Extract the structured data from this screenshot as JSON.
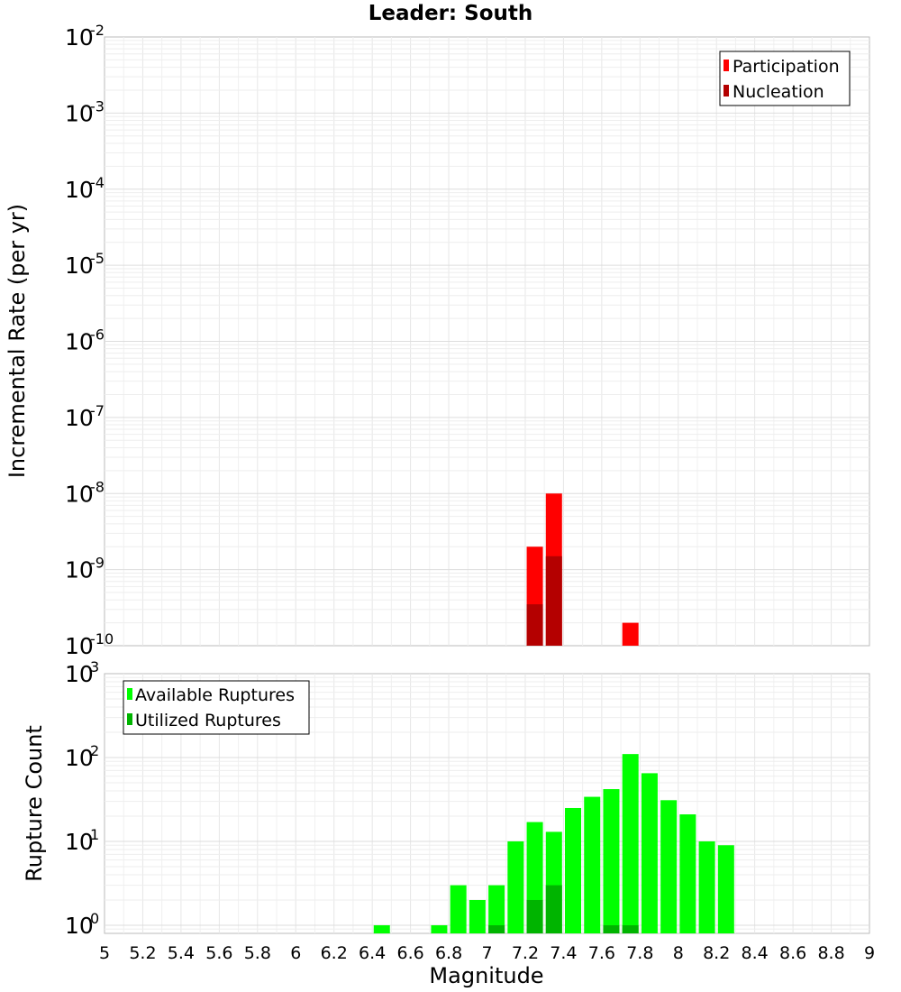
{
  "chart_data": [
    {
      "type": "bar",
      "title": "Leader: South",
      "xlabel": "",
      "ylabel": "Incremental Rate (per yr)",
      "xlim": [
        5,
        9
      ],
      "ylim": [
        1e-10,
        0.01
      ],
      "yscale": "log",
      "grid": true,
      "legend_position": "top-right",
      "ytick_labels": [
        {
          "base": "10",
          "exp": "-2"
        },
        {
          "base": "10",
          "exp": "-3"
        },
        {
          "base": "10",
          "exp": "-4"
        },
        {
          "base": "10",
          "exp": "-5"
        },
        {
          "base": "10",
          "exp": "-6"
        },
        {
          "base": "10",
          "exp": "-7"
        },
        {
          "base": "10",
          "exp": "-8"
        },
        {
          "base": "10",
          "exp": "-9"
        },
        {
          "base": "10",
          "exp": "-10"
        }
      ],
      "series": [
        {
          "name": "Participation",
          "color": "#ff0000",
          "x": [
            7.25,
            7.35,
            7.75
          ],
          "values": [
            2e-09,
            1e-08,
            2e-10
          ]
        },
        {
          "name": "Nucleation",
          "color": "#b40000",
          "x": [
            7.25,
            7.35
          ],
          "values": [
            3.5e-10,
            1.5e-09
          ]
        }
      ]
    },
    {
      "type": "bar",
      "title": "",
      "xlabel": "Magnitude",
      "ylabel": "Rupture Count",
      "xlim": [
        5,
        9
      ],
      "ylim": [
        0.8,
        1000
      ],
      "yscale": "log",
      "grid": true,
      "legend_position": "top-left",
      "xtick_labels": [
        "5",
        "5.2",
        "5.4",
        "5.6",
        "5.8",
        "6",
        "6.2",
        "6.4",
        "6.6",
        "6.8",
        "7",
        "7.2",
        "7.4",
        "7.6",
        "7.8",
        "8",
        "8.2",
        "8.4",
        "8.6",
        "8.8",
        "9"
      ],
      "ytick_labels": [
        {
          "base": "10",
          "exp": "3"
        },
        {
          "base": "10",
          "exp": "2"
        },
        {
          "base": "10",
          "exp": "1"
        },
        {
          "base": "10",
          "exp": "0"
        }
      ],
      "series": [
        {
          "name": "Available Ruptures",
          "color": "#00ff00",
          "x": [
            6.45,
            6.75,
            6.85,
            6.95,
            7.05,
            7.15,
            7.25,
            7.35,
            7.45,
            7.55,
            7.65,
            7.75,
            7.85,
            7.95,
            8.05,
            8.15,
            8.25
          ],
          "values": [
            1,
            1,
            3,
            2,
            3,
            10,
            17,
            13,
            25,
            34,
            42,
            110,
            65,
            31,
            21,
            10,
            9
          ]
        },
        {
          "name": "Utilized Ruptures",
          "color": "#00b400",
          "x": [
            7.05,
            7.25,
            7.35,
            7.65,
            7.75
          ],
          "values": [
            1,
            2,
            3,
            1,
            1
          ]
        }
      ]
    }
  ]
}
